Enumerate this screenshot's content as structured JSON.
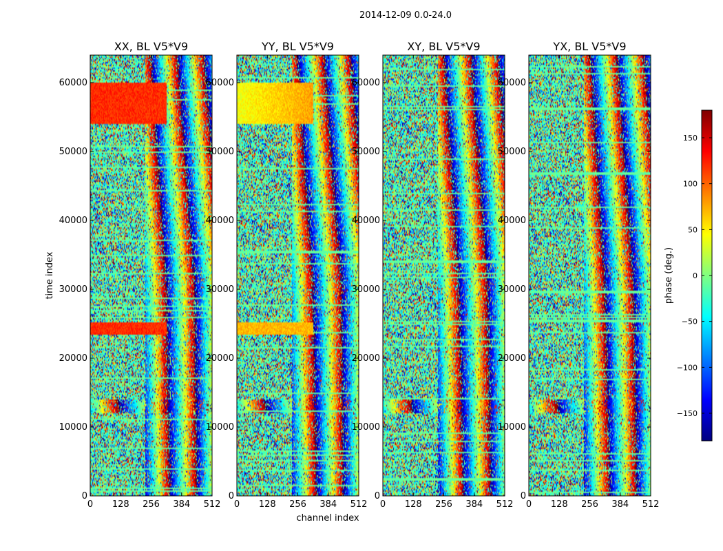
{
  "chart_data": {
    "type": "heatmap",
    "title": "2014-12-09 0.0-24.0",
    "xlabel": "channel index",
    "ylabel": "time index",
    "xlim": [
      0,
      512
    ],
    "ylim": [
      0,
      64000
    ],
    "xticks": [
      0,
      128,
      256,
      384,
      512
    ],
    "yticks": [
      0,
      10000,
      20000,
      30000,
      40000,
      50000,
      60000
    ],
    "panels": [
      {
        "title": "XX, BL V5*V9",
        "pol": "XX"
      },
      {
        "title": "YY, BL V5*V9",
        "pol": "YY"
      },
      {
        "title": "XY, BL V5*V9",
        "pol": "XY"
      },
      {
        "title": "YX, BL V5*V9",
        "pol": "YX"
      }
    ],
    "colorbar": {
      "label": "phase (deg.)",
      "range": [
        -180,
        180
      ],
      "ticks": [
        -150,
        -100,
        -50,
        0,
        50,
        100,
        150
      ],
      "colormap": "jet"
    },
    "features": {
      "strong_phase_band_time": [
        54000,
        60000
      ],
      "strong_phase_band_value_deg": 120,
      "strong_phase_band_channel_end": 320,
      "second_band_time": [
        23500,
        25200
      ],
      "fringe_band_time": [
        12000,
        14000
      ]
    }
  }
}
